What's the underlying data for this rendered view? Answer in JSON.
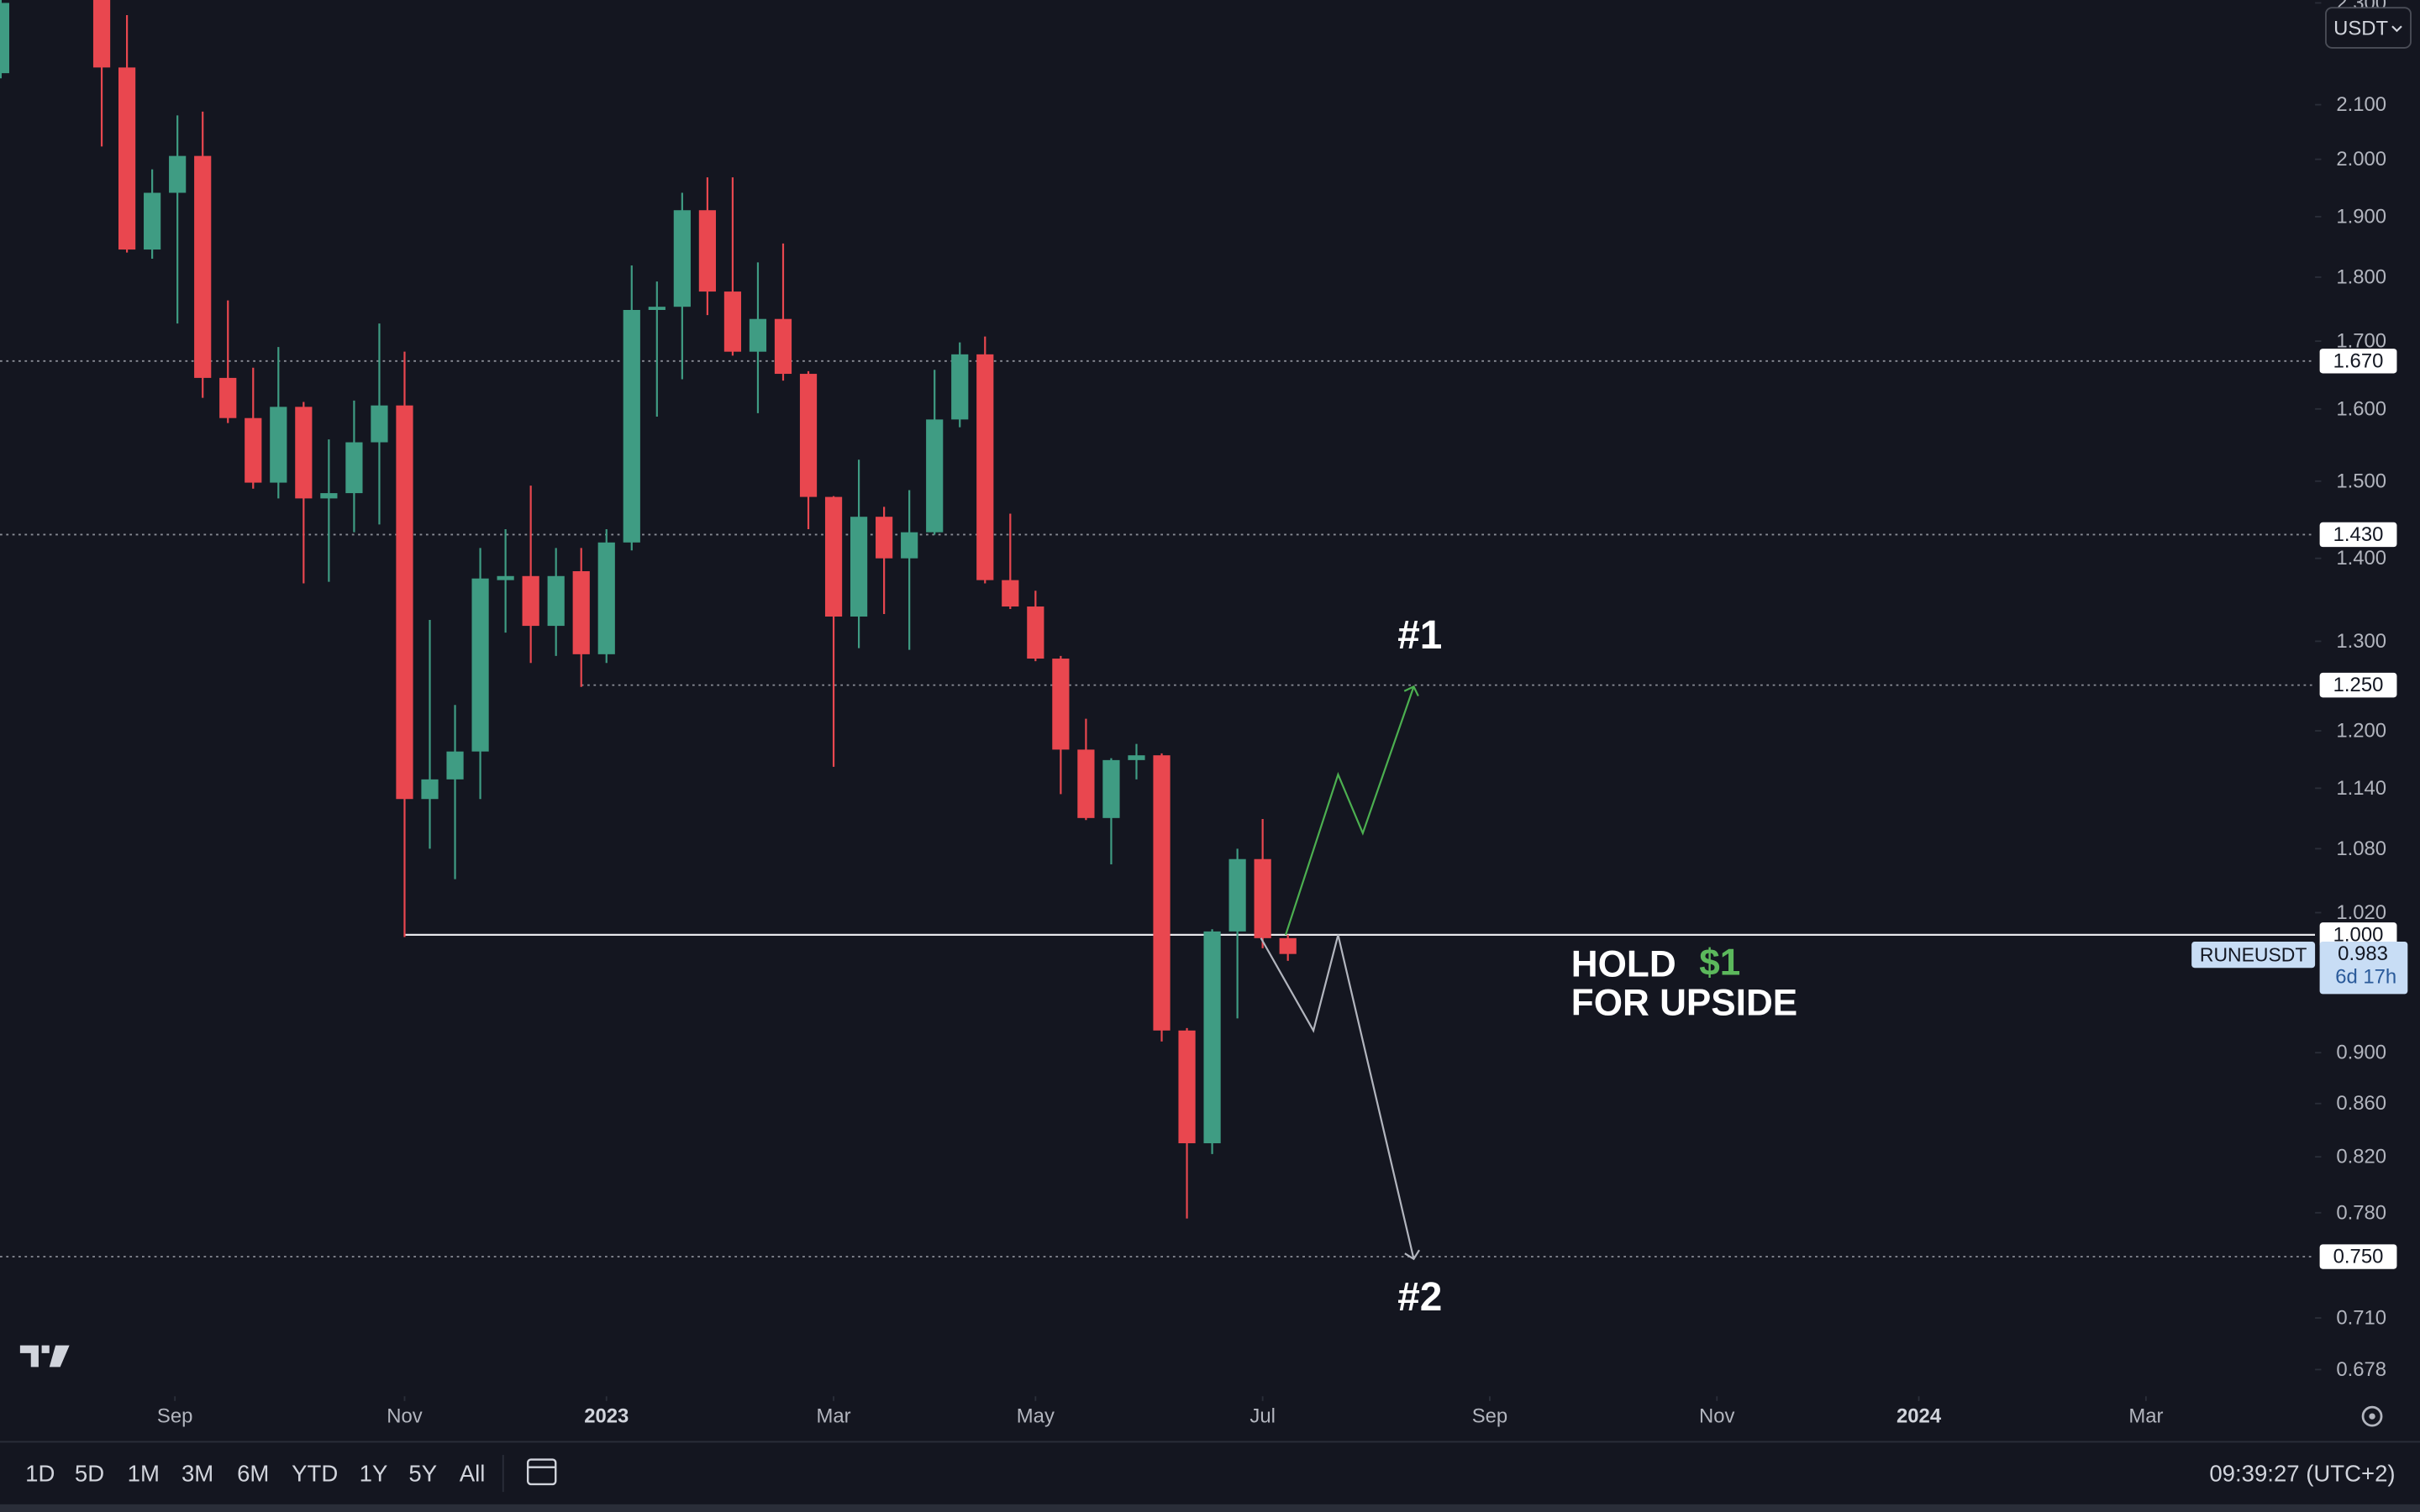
{
  "chart_data": {
    "type": "candlestick",
    "symbol": "RUNEUSDT",
    "log_scale": true,
    "up_color": "#3f9c83",
    "down_color": "#e9474f",
    "x": [
      0,
      4,
      5,
      6,
      7,
      8,
      9,
      10,
      11,
      12,
      13,
      14,
      15,
      16,
      17,
      18,
      19,
      20,
      21,
      22,
      23,
      24,
      25,
      26,
      27,
      28,
      29,
      30,
      31,
      32,
      33,
      34,
      35,
      36,
      37,
      38,
      39,
      40,
      41,
      42,
      43,
      44,
      45,
      46,
      47,
      48,
      49,
      50,
      51
    ],
    "open": [
      2.16,
      2.45,
      2.171,
      1.845,
      1.941,
      2.006,
      1.645,
      1.587,
      1.498,
      1.603,
      1.477,
      1.484,
      1.553,
      1.605,
      1.129,
      1.149,
      1.178,
      1.373,
      1.378,
      1.318,
      1.384,
      1.285,
      1.42,
      1.748,
      1.753,
      1.911,
      1.777,
      1.684,
      1.734,
      1.651,
      1.479,
      1.329,
      1.453,
      1.4,
      1.433,
      1.585,
      1.68,
      1.373,
      1.341,
      1.28,
      1.18,
      1.11,
      1.169,
      1.174,
      0.918,
      0.83,
      1.003,
      1.07,
      0.997
    ],
    "high": [
      2.32,
      2.5,
      2.275,
      1.982,
      2.08,
      2.087,
      1.763,
      1.66,
      1.691,
      1.61,
      1.557,
      1.612,
      1.727,
      1.684,
      1.325,
      1.228,
      1.413,
      1.437,
      1.494,
      1.413,
      1.413,
      1.437,
      1.819,
      1.793,
      1.941,
      1.968,
      1.968,
      1.824,
      1.855,
      1.655,
      1.48,
      1.529,
      1.466,
      1.488,
      1.657,
      1.698,
      1.707,
      1.457,
      1.36,
      1.283,
      1.213,
      1.171,
      1.186,
      1.176,
      0.92,
      1.005,
      1.08,
      1.109,
      1.0
    ],
    "low": [
      2.15,
      2.023,
      1.84,
      1.83,
      1.727,
      1.616,
      1.58,
      1.49,
      1.477,
      1.369,
      1.371,
      1.433,
      1.443,
      0.998,
      1.08,
      1.051,
      1.129,
      1.31,
      1.275,
      1.283,
      1.248,
      1.275,
      1.41,
      1.589,
      1.643,
      1.74,
      1.678,
      1.594,
      1.641,
      1.437,
      1.162,
      1.292,
      1.332,
      1.29,
      1.43,
      1.574,
      1.369,
      1.338,
      1.277,
      1.134,
      1.108,
      1.065,
      1.149,
      0.909,
      0.776,
      0.822,
      0.928,
      0.988,
      0.977
    ],
    "close": [
      2.3,
      2.171,
      1.845,
      1.941,
      2.006,
      1.645,
      1.587,
      1.498,
      1.603,
      1.477,
      1.484,
      1.553,
      1.605,
      1.129,
      1.149,
      1.178,
      1.375,
      1.378,
      1.318,
      1.378,
      1.285,
      1.42,
      1.748,
      1.753,
      1.911,
      1.777,
      1.684,
      1.734,
      1.651,
      1.479,
      1.329,
      1.453,
      1.4,
      1.433,
      1.585,
      1.68,
      1.373,
      1.341,
      1.28,
      1.18,
      1.11,
      1.169,
      1.174,
      0.918,
      0.83,
      1.003,
      1.07,
      0.997,
      0.983
    ],
    "xlim": [
      0,
      91.7
    ],
    "xticks": [
      {
        "value": 6.9,
        "label": "Sep"
      },
      {
        "value": 16,
        "label": "Nov"
      },
      {
        "value": 24,
        "label": "2023"
      },
      {
        "value": 33,
        "label": "Mar"
      },
      {
        "value": 41,
        "label": "May"
      },
      {
        "value": 50,
        "label": "Jul"
      },
      {
        "value": 59,
        "label": "Sep"
      },
      {
        "value": 68,
        "label": "Nov"
      },
      {
        "value": 76,
        "label": "2024"
      },
      {
        "value": 85,
        "label": "Mar"
      }
    ],
    "ylim": [
      0.662,
      2.306
    ],
    "yticks": [
      {
        "value": 2.3,
        "label": "2.300"
      },
      {
        "value": 2.1,
        "label": "2.100"
      },
      {
        "value": 2.0,
        "label": "2.000"
      },
      {
        "value": 1.9,
        "label": "1.900"
      },
      {
        "value": 1.8,
        "label": "1.800"
      },
      {
        "value": 1.7,
        "label": "1.700"
      },
      {
        "value": 1.6,
        "label": "1.600"
      },
      {
        "value": 1.5,
        "label": "1.500"
      },
      {
        "value": 1.4,
        "label": "1.400"
      },
      {
        "value": 1.3,
        "label": "1.300"
      },
      {
        "value": 1.2,
        "label": "1.200"
      },
      {
        "value": 1.14,
        "label": "1.140"
      },
      {
        "value": 1.08,
        "label": "1.080"
      },
      {
        "value": 1.02,
        "label": "1.020"
      },
      {
        "value": 0.9,
        "label": "0.900"
      },
      {
        "value": 0.86,
        "label": "0.860"
      },
      {
        "value": 0.82,
        "label": "0.820"
      },
      {
        "value": 0.78,
        "label": "0.780"
      },
      {
        "value": 0.71,
        "label": "0.710"
      },
      {
        "value": 0.678,
        "label": "0.678"
      }
    ],
    "levels": [
      {
        "value": 1.67,
        "label": "1.670",
        "style": "dotted"
      },
      {
        "value": 1.43,
        "label": "1.430",
        "style": "dotted"
      },
      {
        "value": 1.25,
        "label": "1.250",
        "style": "dotted",
        "from": 23
      },
      {
        "value": 1.0,
        "label": "1.000",
        "style": "solid",
        "from": 16
      },
      {
        "value": 0.75,
        "label": "0.750",
        "style": "dotted"
      }
    ],
    "last_price": {
      "value": 0.983,
      "label": "0.983"
    },
    "countdown": "6d 17h",
    "annotations": {
      "target_up": "#1",
      "target_down": "#2",
      "hold": "HOLD",
      "level": "$1",
      "upside": "FOR UPSIDE"
    }
  },
  "currency": "USDT",
  "toolbar": {
    "ranges": [
      "1D",
      "5D",
      "1M",
      "3M",
      "6M",
      "YTD",
      "1Y",
      "5Y",
      "All"
    ],
    "clock": "09:39:27 (UTC+2)"
  }
}
